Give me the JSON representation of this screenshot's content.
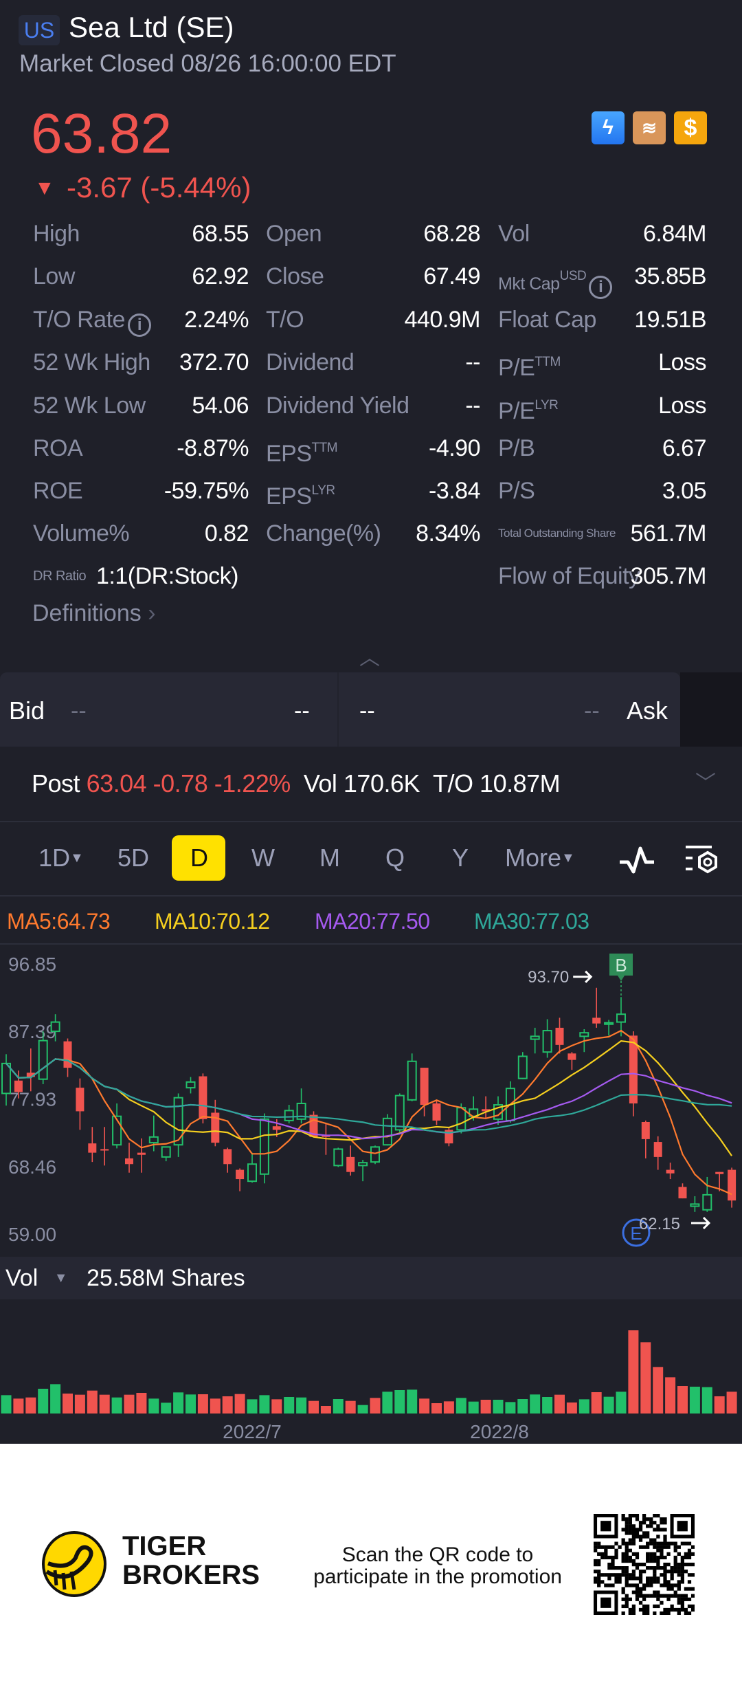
{
  "header": {
    "market_badge": "US",
    "title": "Sea Ltd (SE)",
    "status": "Market Closed 08/26 16:00:00 EDT",
    "price": "63.82",
    "change": "-3.67 (-5.44%)",
    "change_icon": "triangle-down-icon",
    "badges": [
      "lightning-level1-icon",
      "layers-a-icon",
      "dollar-icon"
    ],
    "colors": {
      "down": "#f0544f",
      "up": "#22c06a",
      "accent": "#ffe100"
    }
  },
  "stats": {
    "col1": [
      {
        "label": "High",
        "value": "68.55"
      },
      {
        "label": "Low",
        "value": "62.92"
      },
      {
        "label": "T/O Rate",
        "value": "2.24%"
      },
      {
        "label": "52 Wk High",
        "value": "372.70"
      },
      {
        "label": "52 Wk Low",
        "value": "54.06"
      },
      {
        "label": "ROA",
        "value": "-8.87%"
      },
      {
        "label": "ROE",
        "value": "-59.75%"
      },
      {
        "label": "Volume%",
        "value": "0.82"
      },
      {
        "label": "DR Ratio",
        "value": "1:1(DR:Stock)"
      }
    ],
    "col2": [
      {
        "label": "Open",
        "value": "68.28"
      },
      {
        "label": "Close",
        "value": "67.49"
      },
      {
        "label": "T/O",
        "value": "440.9M"
      },
      {
        "label": "Dividend",
        "value": "--"
      },
      {
        "label": "Dividend Yield",
        "value": "--"
      },
      {
        "label": "EPS",
        "sup": "TTM",
        "value": "-4.90"
      },
      {
        "label": "EPS",
        "sup": "LYR",
        "value": "-3.84"
      },
      {
        "label": "Change(%)",
        "value": "8.34%"
      }
    ],
    "col3": [
      {
        "label": "Vol",
        "value": "6.84M"
      },
      {
        "label": "Mkt Cap",
        "sup": "USD",
        "value": "35.85B"
      },
      {
        "label": "Float Cap",
        "value": "19.51B"
      },
      {
        "label": "P/E",
        "sup": "TTM",
        "value": "Loss"
      },
      {
        "label": "P/E",
        "sup": "LYR",
        "value": "Loss"
      },
      {
        "label": "P/B",
        "value": "6.67"
      },
      {
        "label": "P/S",
        "value": "3.05"
      },
      {
        "label": "Total Outstanding Share",
        "value": "561.7M"
      },
      {
        "label": "Flow of Equity",
        "value": "305.7M"
      }
    ],
    "definitions": "Definitions"
  },
  "quote": {
    "bid_label": "Bid",
    "bid_price": "--",
    "bid_size": "--",
    "ask_price": "--",
    "ask_size": "--",
    "ask_label": "Ask"
  },
  "post": {
    "label": "Post",
    "price": "63.04",
    "change": "-0.78",
    "pct": "-1.22%",
    "vol_label": "Vol",
    "vol": "170.6K",
    "to_label": "T/O",
    "to": "10.87M"
  },
  "timeframes": {
    "items": [
      "1D",
      "5D",
      "D",
      "W",
      "M",
      "Q",
      "Y",
      "More"
    ],
    "selected": "D"
  },
  "ma_legend": [
    {
      "label": "MA5:64.73",
      "color": "#ff7a2e"
    },
    {
      "label": "MA10:70.12",
      "color": "#f5cf1f"
    },
    {
      "label": "MA20:77.50",
      "color": "#a55af0"
    },
    {
      "label": "MA30:77.03",
      "color": "#2fa89a"
    }
  ],
  "volume_header": {
    "label": "Vol",
    "value": "25.58M Shares"
  },
  "chart_data": {
    "type": "candlestick",
    "y_ticks": [
      "96.85",
      "87.39",
      "77.93",
      "68.46",
      "59.00"
    ],
    "ylim": [
      59.0,
      96.85
    ],
    "x_ticks": [
      "2022/7",
      "2022/8"
    ],
    "annotations": {
      "high": "93.70",
      "low": "62.15",
      "buy_marker": "B",
      "earnings_marker": "E"
    },
    "candles": [
      [
        78.7,
        84.2,
        77.0,
        82.9
      ],
      [
        80.5,
        81.9,
        78.0,
        78.9
      ],
      [
        81.6,
        85.0,
        79.0,
        81.0
      ],
      [
        80.7,
        87.4,
        80.0,
        86.1
      ],
      [
        87.4,
        89.8,
        86.0,
        88.7
      ],
      [
        86.0,
        86.4,
        81.0,
        82.3
      ],
      [
        79.5,
        80.8,
        73.6,
        76.2
      ],
      [
        71.7,
        74.0,
        69.1,
        70.4
      ],
      [
        70.9,
        74.0,
        68.6,
        70.7
      ],
      [
        71.5,
        77.3,
        71.0,
        75.5
      ],
      [
        69.6,
        71.8,
        67.6,
        68.8
      ],
      [
        70.4,
        72.4,
        67.6,
        70.1
      ],
      [
        71.8,
        75.6,
        70.6,
        72.6
      ],
      [
        69.8,
        71.2,
        69.2,
        71.2
      ],
      [
        71.5,
        78.7,
        69.8,
        78.1
      ],
      [
        79.5,
        81.0,
        78.7,
        80.3
      ],
      [
        81.1,
        81.5,
        74.5,
        75.1
      ],
      [
        76.0,
        77.8,
        71.3,
        71.8
      ],
      [
        70.9,
        71.1,
        67.6,
        68.8
      ],
      [
        68.0,
        68.2,
        65.0,
        66.7
      ],
      [
        66.4,
        70.4,
        66.2,
        68.8
      ],
      [
        67.4,
        75.9,
        66.1,
        75.1
      ],
      [
        74.1,
        75.1,
        72.6,
        73.6
      ],
      [
        74.9,
        77.1,
        74.5,
        76.3
      ],
      [
        75.1,
        79.4,
        74.5,
        77.3
      ],
      [
        75.7,
        76.2,
        72.6,
        72.6
      ],
      [
        72.8,
        74.5,
        70.1,
        72.7
      ],
      [
        68.6,
        71.1,
        68.4,
        70.9
      ],
      [
        69.8,
        71.4,
        67.2,
        67.7
      ],
      [
        68.6,
        69.4,
        66.4,
        69.0
      ],
      [
        69.1,
        71.4,
        68.8,
        71.2
      ],
      [
        71.5,
        75.8,
        71.4,
        75.2
      ],
      [
        73.6,
        78.7,
        73.3,
        78.4
      ],
      [
        77.8,
        84.3,
        77.6,
        83.2
      ],
      [
        82.3,
        82.3,
        75.5,
        77.1
      ],
      [
        77.3,
        77.8,
        74.3,
        74.9
      ],
      [
        73.6,
        73.9,
        71.3,
        71.7
      ],
      [
        73.6,
        77.3,
        73.1,
        76.7
      ],
      [
        75.5,
        78.3,
        74.9,
        76.5
      ],
      [
        76.5,
        78.3,
        75.2,
        76.2
      ],
      [
        75.1,
        78.3,
        74.3,
        77.1
      ],
      [
        74.9,
        80.4,
        74.6,
        79.4
      ],
      [
        80.8,
        84.5,
        80.7,
        83.9
      ],
      [
        86.3,
        87.9,
        84.3,
        86.7
      ],
      [
        84.5,
        89.1,
        83.7,
        87.5
      ],
      [
        87.9,
        89.3,
        84.3,
        85.5
      ],
      [
        84.3,
        84.5,
        82.0,
        83.4
      ],
      [
        86.7,
        87.7,
        84.5,
        87.2
      ],
      [
        89.3,
        93.5,
        87.9,
        88.5
      ],
      [
        88.4,
        89.0,
        86.8,
        88.6
      ],
      [
        88.7,
        92.2,
        86.7,
        89.8
      ],
      [
        86.8,
        87.4,
        75.5,
        77.3
      ],
      [
        74.7,
        74.9,
        69.6,
        72.3
      ],
      [
        71.9,
        72.7,
        68.0,
        69.8
      ],
      [
        68.0,
        69.0,
        66.7,
        67.5
      ],
      [
        65.6,
        66.1,
        64.0,
        64.0
      ],
      [
        62.9,
        64.3,
        62.1,
        63.2
      ],
      [
        62.4,
        67.0,
        62.1,
        64.5
      ],
      [
        67.7,
        67.7,
        65.0,
        67.4
      ],
      [
        68.0,
        68.3,
        62.7,
        63.7
      ]
    ],
    "volume": [
      8.0,
      6.5,
      7.0,
      10.8,
      12.8,
      8.7,
      8.2,
      10.0,
      8.2,
      7.0,
      8.2,
      9.0,
      6.5,
      4.7,
      9.2,
      8.3,
      8.4,
      6.5,
      7.5,
      8.5,
      6.2,
      8.0,
      6.2,
      7.2,
      7.0,
      5.5,
      3.3,
      6.3,
      5.5,
      3.7,
      6.8,
      9.5,
      10.2,
      10.4,
      6.5,
      4.5,
      5.3,
      6.8,
      5.2,
      6.0,
      6.0,
      5.0,
      6.3,
      8.3,
      7.2,
      8.2,
      4.8,
      6.2,
      9.3,
      7.3,
      9.5,
      36.3,
      31.1,
      20.3,
      15.8,
      12.0,
      11.7,
      11.5,
      7.5,
      9.5
    ],
    "volume_dir": "grrggrrrrgrrggggrrrrggrggrrgrgrgggrrrggrgggggrrgrggrrrrrggrr"
  },
  "footer": {
    "brand_line1": "TIGER",
    "brand_line2": "BROKERS",
    "promo_line1": "Scan the QR code to",
    "promo_line2": "participate in the promotion"
  }
}
